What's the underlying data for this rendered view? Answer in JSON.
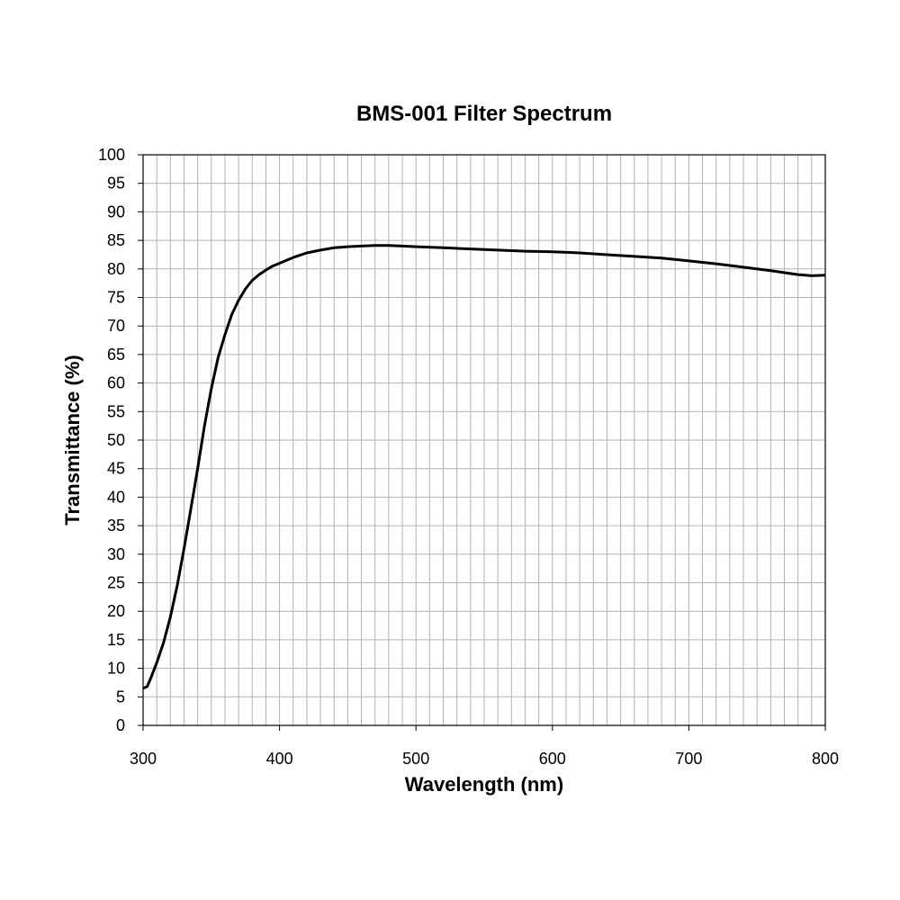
{
  "chart_data": {
    "type": "line",
    "title": "BMS-001 Filter Spectrum",
    "xlabel": "Wavelength (nm)",
    "ylabel": "Transmittance (%)",
    "xlim": [
      300,
      800
    ],
    "ylim": [
      0,
      100
    ],
    "x_major_ticks": [
      300,
      400,
      500,
      600,
      700,
      800
    ],
    "x_minor_step": 10,
    "y_ticks": [
      0,
      5,
      10,
      15,
      20,
      25,
      30,
      35,
      40,
      45,
      50,
      55,
      60,
      65,
      70,
      75,
      80,
      85,
      90,
      95,
      100
    ],
    "grid": true,
    "line_color": "#000000",
    "grid_color": "#b3b3b3",
    "series": [
      {
        "x": [
          300,
          303,
          306,
          310,
          315,
          320,
          325,
          330,
          335,
          340,
          345,
          350,
          355,
          360,
          365,
          370,
          375,
          380,
          385,
          390,
          395,
          400,
          410,
          420,
          430,
          440,
          450,
          460,
          470,
          480,
          490,
          500,
          520,
          540,
          560,
          580,
          600,
          620,
          640,
          660,
          680,
          700,
          720,
          740,
          760,
          780,
          790,
          800
        ],
        "y": [
          6.5,
          6.8,
          8.5,
          11,
          14.5,
          19,
          24.5,
          31,
          38,
          45,
          52.5,
          59,
          64.5,
          68.5,
          72,
          74.5,
          76.5,
          78,
          79,
          79.8,
          80.5,
          81,
          82,
          82.8,
          83.3,
          83.7,
          83.9,
          84.0,
          84.1,
          84.1,
          84.0,
          83.9,
          83.7,
          83.5,
          83.3,
          83.1,
          83.0,
          82.8,
          82.5,
          82.2,
          81.9,
          81.4,
          80.9,
          80.3,
          79.7,
          79.0,
          78.8,
          78.9
        ]
      }
    ]
  }
}
